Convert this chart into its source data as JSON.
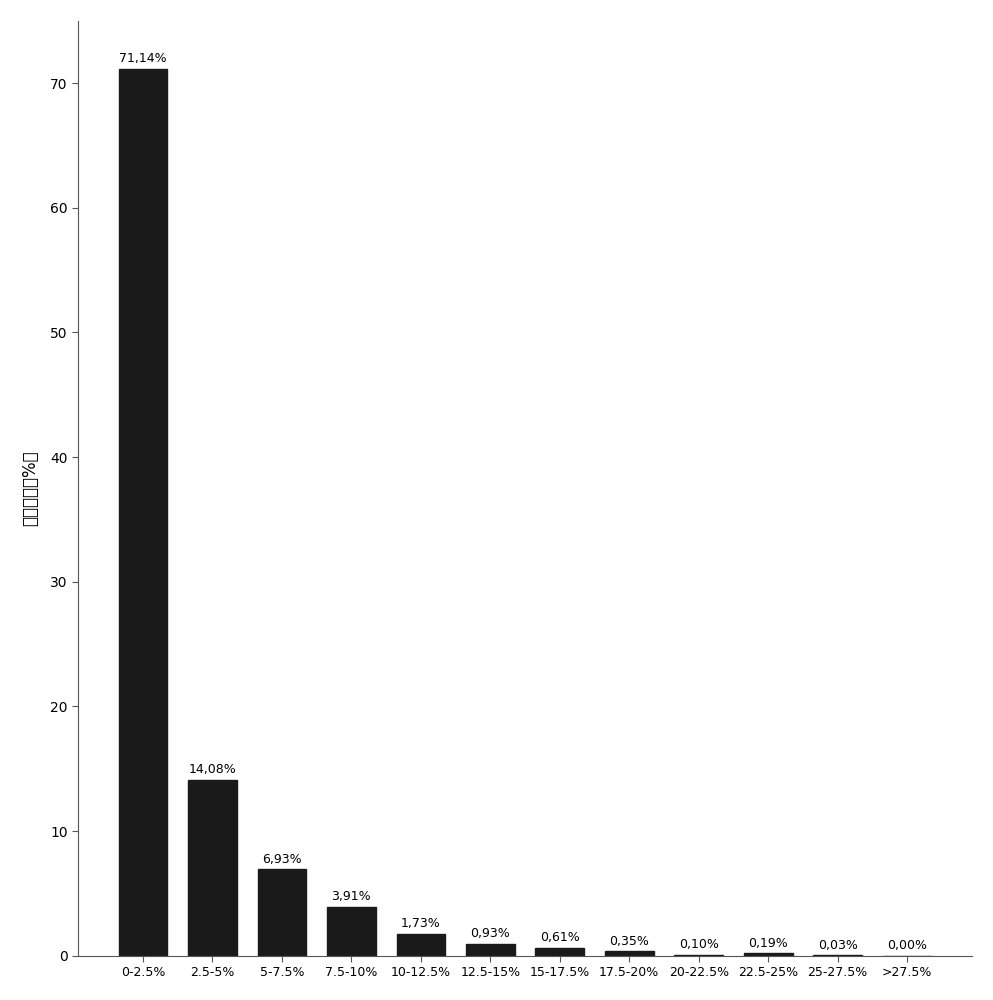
{
  "categories": [
    "0-2.5%",
    "2.5-5%",
    "5-7.5%",
    "7.5-10%",
    "10-12.5%",
    "12.5-15%",
    "15-17.5%",
    "17.5-20%",
    "20-22.5%",
    "22.5-25%",
    "25-27.5%",
    ">27.5%"
  ],
  "values": [
    71.14,
    14.08,
    6.93,
    3.91,
    1.73,
    0.93,
    0.61,
    0.35,
    0.1,
    0.19,
    0.03,
    0.0
  ],
  "labels": [
    "71,14%",
    "14,08%",
    "6,93%",
    "3,91%",
    "1,73%",
    "0,93%",
    "0,61%",
    "0,35%",
    "0,10%",
    "0,19%",
    "0,03%",
    "0,00%"
  ],
  "bar_color": "#1a1a1a",
  "background_color": "#ffffff",
  "ylabel": "比例分布（%）",
  "ylim": [
    0,
    75
  ],
  "yticks": [
    0,
    10,
    20,
    30,
    40,
    50,
    60,
    70
  ],
  "label_fontsize": 9,
  "tick_fontsize": 10,
  "ylabel_fontsize": 12,
  "bar_width": 0.7
}
